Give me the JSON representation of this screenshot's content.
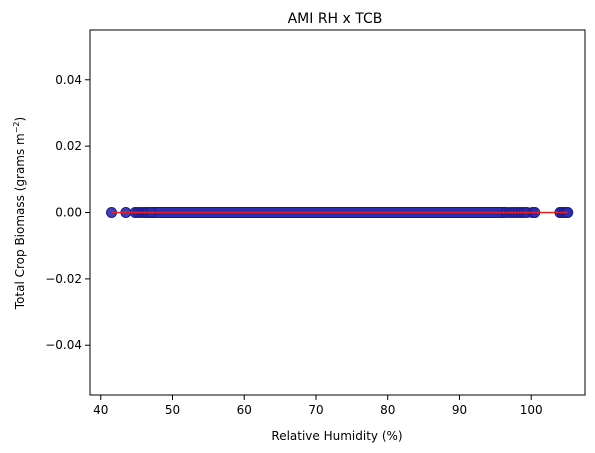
{
  "chart_data": {
    "type": "scatter",
    "title": "AMI RH x TCB",
    "xlabel": "Relative Humidity (%)",
    "ylabel_main": "Total Crop Biomass (grams m",
    "ylabel_exp": "−2",
    "ylabel_close": ")",
    "xlim": [
      38.5,
      107.5
    ],
    "ylim": [
      -0.055,
      0.055
    ],
    "xticks": [
      40,
      50,
      60,
      70,
      80,
      90,
      100
    ],
    "xtick_labels": [
      "40",
      "50",
      "60",
      "70",
      "80",
      "90",
      "100"
    ],
    "yticks": [
      -0.04,
      -0.02,
      0.0,
      0.02,
      0.04
    ],
    "ytick_labels": [
      "−0.04",
      "−0.02",
      "0.00",
      "0.02",
      "0.04"
    ],
    "point_color": "#2b2bb3",
    "point_edge_color": "#1a1a8c",
    "line_color": "#e8201c",
    "scatter_x": [
      41.5,
      43.5,
      44.8,
      45.2,
      45.6,
      46.0,
      46.3,
      46.6,
      47.0,
      96.5,
      97.0,
      97.4,
      97.8,
      98.2,
      98.6,
      99.0,
      99.4,
      100.2,
      100.5,
      104.0,
      104.3,
      104.6,
      104.9,
      105.1
    ],
    "scatter_y": [
      0,
      0,
      0,
      0,
      0,
      0,
      0,
      0,
      0,
      0,
      0,
      0,
      0,
      0,
      0,
      0,
      0,
      0,
      0,
      0,
      0,
      0,
      0,
      0
    ],
    "dense_band_x": [
      47.0,
      96.5
    ],
    "fit_line": {
      "x": [
        41.5,
        105.1
      ],
      "y": [
        0,
        0
      ]
    }
  }
}
